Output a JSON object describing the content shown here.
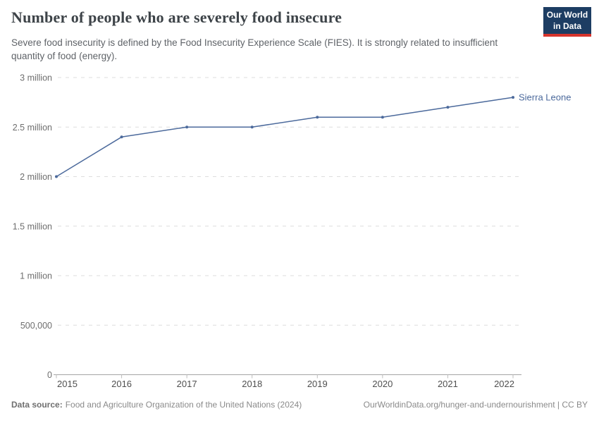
{
  "header": {
    "title": "Number of people who are severely food insecure",
    "subtitle": "Severe food insecurity is defined by the Food Insecurity Experience Scale (FIES). It is strongly related to insufficient quantity of food (energy)."
  },
  "logo": {
    "line1": "Our World",
    "line2": "in Data",
    "bg_color": "#1d3d63",
    "accent_color": "#d6342c"
  },
  "chart_data": {
    "type": "line",
    "title": "Number of people who are severely food insecure",
    "x": [
      2015,
      2016,
      2017,
      2018,
      2019,
      2020,
      2021,
      2022
    ],
    "x_tick_labels": [
      "2015",
      "2016",
      "2017",
      "2018",
      "2019",
      "2020",
      "2021",
      "2022"
    ],
    "series": [
      {
        "name": "Sierra Leone",
        "color": "#4C6A9C",
        "values": [
          2000000,
          2400000,
          2500000,
          2500000,
          2600000,
          2600000,
          2700000,
          2800000
        ]
      }
    ],
    "y_ticks": [
      {
        "value": 0,
        "label": "0"
      },
      {
        "value": 500000,
        "label": "500,000"
      },
      {
        "value": 1000000,
        "label": "1 million"
      },
      {
        "value": 1500000,
        "label": "1.5 million"
      },
      {
        "value": 2000000,
        "label": "2 million"
      },
      {
        "value": 2500000,
        "label": "2.5 million"
      },
      {
        "value": 3000000,
        "label": "3 million"
      }
    ],
    "ylim": [
      0,
      3000000
    ],
    "grid": "horizontal-dashed",
    "legend_position": "end-of-line-label",
    "colors": {
      "gridline": "#dedede",
      "axis_line": "#a5a5a5",
      "tick": "#bdbdbd",
      "y_label": "#6e6e6e",
      "x_label": "#4f4f4f"
    }
  },
  "footer": {
    "source_label": "Data source:",
    "source_text": "Food and Agriculture Organization of the United Nations (2024)",
    "link_text": "OurWorldinData.org/hunger-and-undernourishment | CC BY"
  }
}
